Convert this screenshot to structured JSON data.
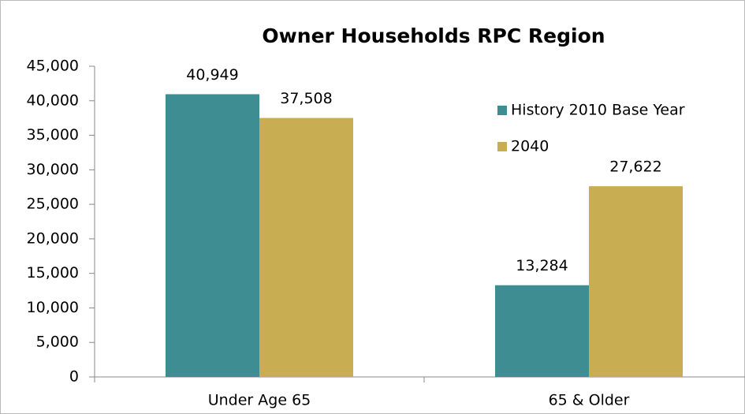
{
  "chart_data": {
    "type": "bar",
    "title": "Owner Households RPC Region",
    "categories": [
      "Under Age 65",
      "65 & Older"
    ],
    "series": [
      {
        "name": "History 2010 Base Year",
        "color": "#3e8d93",
        "values": [
          40949,
          13284
        ],
        "value_labels": [
          "40,949",
          "13,284"
        ]
      },
      {
        "name": "2040",
        "color": "#c8ad52",
        "values": [
          37508,
          27622
        ],
        "value_labels": [
          "37,508",
          "27,622"
        ]
      }
    ],
    "ylim": [
      0,
      45000
    ],
    "yticks": [
      0,
      {
        "value": 5000,
        "label": "5,000"
      },
      {
        "value": 10000,
        "label": "10,000"
      },
      {
        "value": 15000,
        "label": "15,000"
      },
      {
        "value": 20000,
        "label": "20,000"
      },
      {
        "value": 25000,
        "label": "25,000"
      },
      {
        "value": 30000,
        "label": "30,000"
      },
      {
        "value": 35000,
        "label": "35,000"
      },
      {
        "value": 40000,
        "label": "40,000"
      },
      {
        "value": 45000,
        "label": "45,000"
      }
    ],
    "grid": false,
    "legend": "right"
  }
}
